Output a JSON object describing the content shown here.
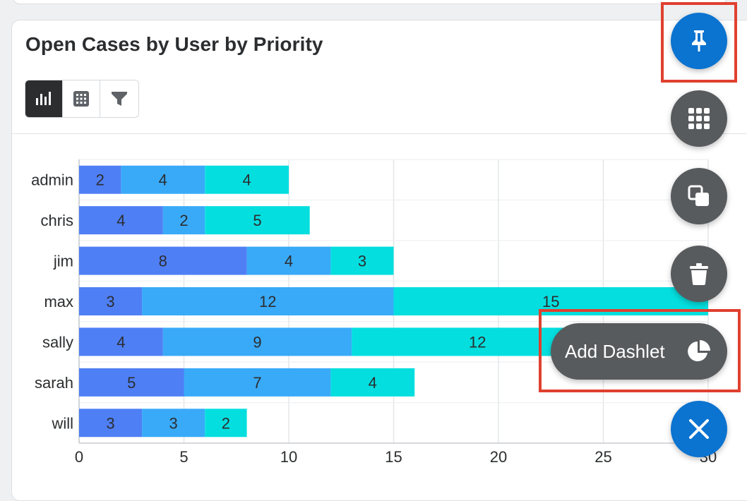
{
  "dashlet": {
    "title": "Open Cases by User by Priority",
    "toolbar": [
      {
        "name": "chart-view-button",
        "icon": "bar-chart-icon",
        "active": true
      },
      {
        "name": "table-view-button",
        "icon": "grid-icon",
        "active": false
      },
      {
        "name": "filter-button",
        "icon": "filter-icon",
        "active": false
      }
    ]
  },
  "chart_data": {
    "type": "bar",
    "orientation": "horizontal",
    "stacked": true,
    "categories": [
      "admin",
      "chris",
      "jim",
      "max",
      "sally",
      "sarah",
      "will"
    ],
    "series": [
      {
        "values": [
          2,
          4,
          8,
          3,
          4,
          5,
          3
        ],
        "color": "#4f7ff5"
      },
      {
        "values": [
          4,
          2,
          4,
          12,
          9,
          7,
          3
        ],
        "color": "#39aaf8"
      },
      {
        "values": [
          4,
          5,
          3,
          15,
          12,
          4,
          2
        ],
        "color": "#05dede"
      }
    ],
    "xticks": [
      "0",
      "5",
      "10",
      "15",
      "20",
      "25",
      "30"
    ],
    "xlim": [
      0,
      30
    ],
    "grid": true,
    "data_labels": true
  },
  "actions": {
    "pin": {
      "icon": "pin-icon"
    },
    "grid": {
      "icon": "apps-grid-icon"
    },
    "duplicate": {
      "icon": "duplicate-icon"
    },
    "delete": {
      "icon": "trash-icon"
    },
    "add_dashlet": {
      "label": "Add Dashlet",
      "icon": "pie-chart-icon"
    },
    "close": {
      "icon": "close-icon"
    }
  },
  "colors": {
    "accent": "#0b73d0",
    "fab_gray": "#585b5e",
    "highlight": "#e0402f"
  }
}
